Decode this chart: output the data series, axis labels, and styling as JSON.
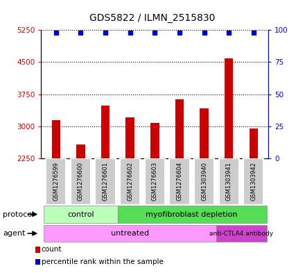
{
  "title": "GDS5822 / ILMN_2515830",
  "samples": [
    "GSM1276599",
    "GSM1276600",
    "GSM1276601",
    "GSM1276602",
    "GSM1276603",
    "GSM1276604",
    "GSM1303940",
    "GSM1303941",
    "GSM1303942"
  ],
  "counts": [
    3150,
    2580,
    3480,
    3200,
    3080,
    3630,
    3420,
    4580,
    2950
  ],
  "percentile_ranks": [
    98,
    98,
    98,
    98,
    98,
    98,
    98,
    98,
    98
  ],
  "ylim_left": [
    2250,
    5250
  ],
  "yticks_left": [
    2250,
    3000,
    3750,
    4500,
    5250
  ],
  "yticks_right": [
    0,
    25,
    50,
    75,
    100
  ],
  "ylim_right": [
    0,
    100
  ],
  "bar_color": "#cc0000",
  "dot_color": "#0000cc",
  "protocol_control_label": "control",
  "protocol_myofib_label": "myofibroblast depletion",
  "agent_untreated_label": "untreated",
  "agent_anti_label": "anti-CTLA4 antibody",
  "protocol_control_color": "#bbffbb",
  "protocol_myofib_color": "#55dd55",
  "agent_untreated_color": "#ff99ff",
  "agent_anti_color": "#cc44cc",
  "legend_count_label": "count",
  "legend_percentile_label": "percentile rank within the sample",
  "axis_left_color": "#cc0000",
  "axis_right_color": "#0000cc",
  "bar_width": 0.35,
  "sample_label_fontsize": 6.0,
  "title_fontsize": 10
}
